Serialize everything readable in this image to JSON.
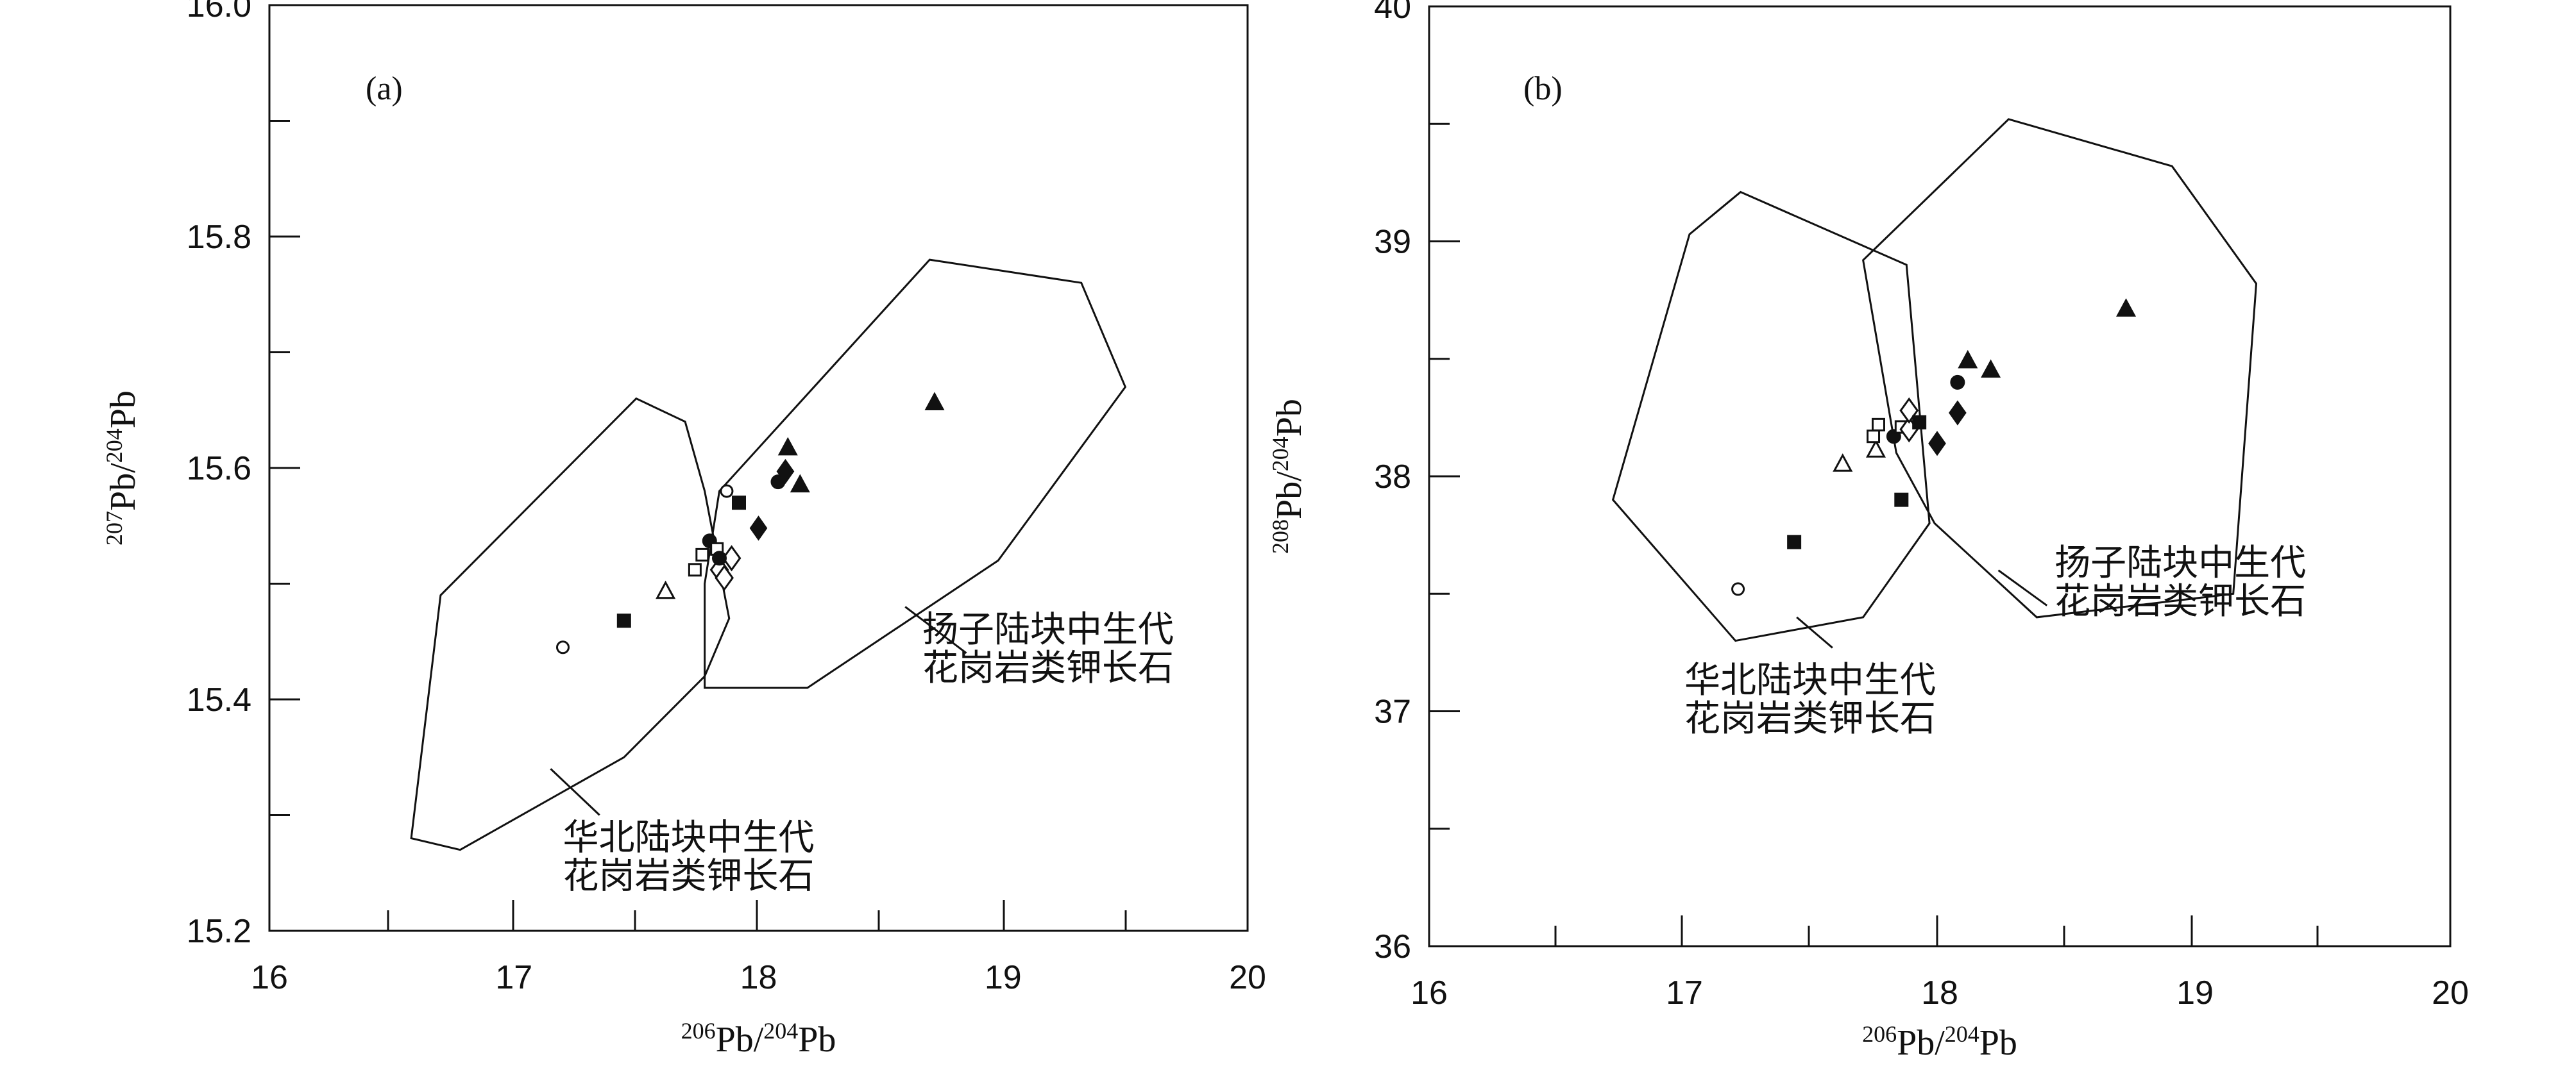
{
  "chart_data": [
    {
      "type": "scatter",
      "panel_label": "(a)",
      "xlabel": {
        "sup": "206",
        "base": "Pb/",
        "sup2": "204",
        "base2": "Pb"
      },
      "ylabel": {
        "sup": "207",
        "base": "Pb/",
        "sup2": "204",
        "base2": "Pb"
      },
      "xlim": [
        16,
        20
      ],
      "ylim": [
        15.2,
        16.0
      ],
      "x_ticks": [
        "16",
        "17",
        "18",
        "19",
        "20"
      ],
      "y_ticks": [
        "15.2",
        "15.4",
        "15.6",
        "15.8",
        "16.0"
      ],
      "grid": false,
      "regions": [
        {
          "label": [
            "华北陆块中生代",
            "花岗岩类钾长石"
          ],
          "polygon": [
            [
              16.58,
              15.28
            ],
            [
              16.7,
              15.49
            ],
            [
              17.5,
              15.66
            ],
            [
              17.7,
              15.64
            ],
            [
              17.78,
              15.58
            ],
            [
              17.88,
              15.47
            ],
            [
              17.78,
              15.42
            ],
            [
              17.45,
              15.35
            ],
            [
              16.78,
              15.27
            ]
          ],
          "leader": [
            [
              17.15,
              15.34
            ],
            [
              17.35,
              15.3
            ]
          ],
          "label_anchor": [
            17.2,
            15.27
          ]
        },
        {
          "label": [
            "扬子陆块中生代",
            "花岗岩类钾长石"
          ],
          "polygon": [
            [
              17.78,
              15.41
            ],
            [
              18.2,
              15.41
            ],
            [
              18.98,
              15.52
            ],
            [
              19.5,
              15.67
            ],
            [
              19.32,
              15.76
            ],
            [
              18.7,
              15.78
            ],
            [
              17.84,
              15.58
            ],
            [
              17.78,
              15.5
            ]
          ],
          "leader": [
            [
              18.6,
              15.48
            ],
            [
              18.85,
              15.44
            ]
          ],
          "label_anchor": [
            18.67,
            15.45
          ]
        }
      ],
      "points": [
        {
          "x": 17.2,
          "y": 15.445,
          "marker": "circle-open"
        },
        {
          "x": 17.45,
          "y": 15.468,
          "marker": "square-filled"
        },
        {
          "x": 17.62,
          "y": 15.493,
          "marker": "triangle-open"
        },
        {
          "x": 17.74,
          "y": 15.512,
          "marker": "square-open"
        },
        {
          "x": 17.77,
          "y": 15.525,
          "marker": "square-open"
        },
        {
          "x": 17.8,
          "y": 15.537,
          "marker": "circle-filled"
        },
        {
          "x": 17.83,
          "y": 15.53,
          "marker": "square-open"
        },
        {
          "x": 17.84,
          "y": 15.512,
          "marker": "diamond-open"
        },
        {
          "x": 17.86,
          "y": 15.505,
          "marker": "diamond-open"
        },
        {
          "x": 17.89,
          "y": 15.522,
          "marker": "diamond-open"
        },
        {
          "x": 17.84,
          "y": 15.522,
          "marker": "circle-filled"
        },
        {
          "x": 17.87,
          "y": 15.58,
          "marker": "circle-open"
        },
        {
          "x": 17.92,
          "y": 15.57,
          "marker": "square-filled"
        },
        {
          "x": 18.0,
          "y": 15.548,
          "marker": "diamond-filled"
        },
        {
          "x": 18.08,
          "y": 15.588,
          "marker": "circle-filled"
        },
        {
          "x": 18.11,
          "y": 15.597,
          "marker": "diamond-filled"
        },
        {
          "x": 18.12,
          "y": 15.617,
          "marker": "triangle-filled"
        },
        {
          "x": 18.17,
          "y": 15.585,
          "marker": "triangle-filled"
        },
        {
          "x": 18.72,
          "y": 15.656,
          "marker": "triangle-filled"
        }
      ]
    },
    {
      "type": "scatter",
      "panel_label": "(b)",
      "xlabel": {
        "sup": "206",
        "base": "Pb/",
        "sup2": "204",
        "base2": "Pb"
      },
      "ylabel": {
        "sup": "208",
        "base": "Pb/",
        "sup2": "204",
        "base2": "Pb"
      },
      "xlim": [
        16,
        20
      ],
      "ylim": [
        36,
        40
      ],
      "x_ticks": [
        "16",
        "17",
        "18",
        "19",
        "20"
      ],
      "y_ticks": [
        "36",
        "37",
        "38",
        "39",
        "40"
      ],
      "grid": false,
      "regions": [
        {
          "label": [
            "华北陆块中生代",
            "花岗岩类钾长石"
          ],
          "polygon": [
            [
              16.72,
              37.9
            ],
            [
              17.02,
              39.03
            ],
            [
              17.22,
              39.21
            ],
            [
              17.87,
              38.9
            ],
            [
              17.96,
              37.8
            ],
            [
              17.7,
              37.4
            ],
            [
              17.2,
              37.3
            ]
          ],
          "leader": [
            [
              17.44,
              37.4
            ],
            [
              17.58,
              37.27
            ]
          ],
          "label_anchor": [
            17.0,
            37.08
          ]
        },
        {
          "label": [
            "扬子陆块中生代",
            "花岗岩类钾长石"
          ],
          "polygon": [
            [
              17.7,
              38.92
            ],
            [
              18.27,
              39.52
            ],
            [
              18.91,
              39.32
            ],
            [
              19.24,
              38.82
            ],
            [
              19.15,
              37.5
            ],
            [
              18.38,
              37.4
            ],
            [
              17.98,
              37.8
            ],
            [
              17.83,
              38.1
            ]
          ],
          "leader": [
            [
              18.23,
              37.6
            ],
            [
              18.42,
              37.45
            ]
          ],
          "label_anchor": [
            18.45,
            37.58
          ]
        }
      ],
      "points": [
        {
          "x": 17.21,
          "y": 37.52,
          "marker": "circle-open"
        },
        {
          "x": 17.43,
          "y": 37.72,
          "marker": "square-filled"
        },
        {
          "x": 17.62,
          "y": 38.05,
          "marker": "triangle-open"
        },
        {
          "x": 17.75,
          "y": 38.11,
          "marker": "triangle-open"
        },
        {
          "x": 17.74,
          "y": 38.17,
          "marker": "square-open"
        },
        {
          "x": 17.76,
          "y": 38.22,
          "marker": "square-open"
        },
        {
          "x": 17.82,
          "y": 38.17,
          "marker": "circle-filled"
        },
        {
          "x": 17.85,
          "y": 38.21,
          "marker": "square-open"
        },
        {
          "x": 17.88,
          "y": 38.2,
          "marker": "diamond-open"
        },
        {
          "x": 17.88,
          "y": 38.28,
          "marker": "diamond-open"
        },
        {
          "x": 17.92,
          "y": 38.23,
          "marker": "square-filled"
        },
        {
          "x": 17.85,
          "y": 37.9,
          "marker": "square-filled"
        },
        {
          "x": 17.99,
          "y": 38.14,
          "marker": "diamond-filled"
        },
        {
          "x": 18.07,
          "y": 38.27,
          "marker": "diamond-filled"
        },
        {
          "x": 18.07,
          "y": 38.4,
          "marker": "circle-filled"
        },
        {
          "x": 18.11,
          "y": 38.49,
          "marker": "triangle-filled"
        },
        {
          "x": 18.2,
          "y": 38.45,
          "marker": "triangle-filled"
        },
        {
          "x": 18.73,
          "y": 38.71,
          "marker": "triangle-filled"
        }
      ]
    }
  ]
}
